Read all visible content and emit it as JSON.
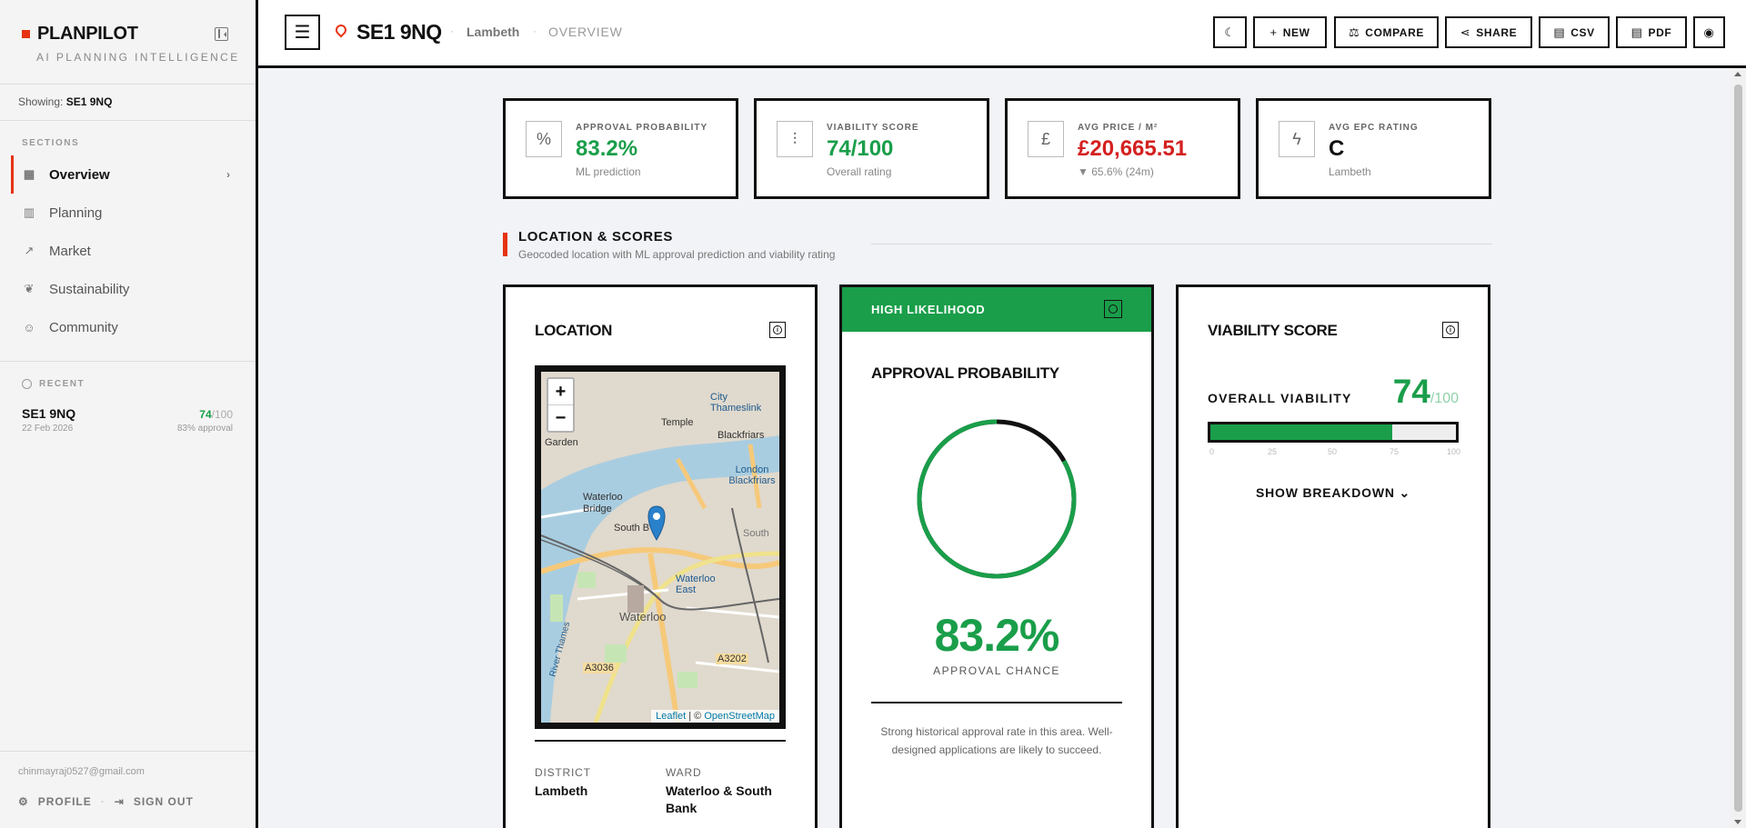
{
  "sidebar": {
    "brand": "PLANPILOT",
    "tagline": "AI PLANNING INTELLIGENCE",
    "showing_label": "Showing:",
    "showing_value": "SE1 9NQ",
    "sections_title": "SECTIONS",
    "items": [
      {
        "label": "Overview",
        "icon": "grid-icon",
        "active": true
      },
      {
        "label": "Planning",
        "icon": "building-icon"
      },
      {
        "label": "Market",
        "icon": "trending-up-icon"
      },
      {
        "label": "Sustainability",
        "icon": "leaf-icon"
      },
      {
        "label": "Community",
        "icon": "users-icon"
      }
    ],
    "recent_title": "RECENT",
    "recent": [
      {
        "postcode": "SE1 9NQ",
        "date": "22 Feb 2026",
        "score": "74",
        "score_max": "/100",
        "approval": "83% approval"
      }
    ],
    "email": "chinmayraj0527@gmail.com",
    "profile_label": "PROFILE",
    "signout_label": "SIGN OUT"
  },
  "topbar": {
    "postcode": "SE1 9NQ",
    "borough": "Lambeth",
    "section": "OVERVIEW",
    "buttons": {
      "new": "NEW",
      "compare": "COMPARE",
      "share": "SHARE",
      "csv": "CSV",
      "pdf": "PDF"
    }
  },
  "stats": [
    {
      "label": "APPROVAL PROBABILITY",
      "value": "83.2%",
      "sub": "ML prediction",
      "icon": "percent-icon",
      "color": "#1a9e4a"
    },
    {
      "label": "VIABILITY SCORE",
      "value": "74/100",
      "sub": "Overall rating",
      "icon": "bar-chart-icon",
      "color": "#1a9e4a"
    },
    {
      "label": "AVG PRICE / M²",
      "value": "£20,665.51",
      "sub": "▼ 65.6% (24m)",
      "icon": "pound-icon",
      "color": "#d42020"
    },
    {
      "label": "AVG EPC RATING",
      "value": "C",
      "sub": "Lambeth",
      "icon": "lightning-icon",
      "color": "#111111"
    }
  ],
  "section": {
    "title": "LOCATION & SCORES",
    "subtitle": "Geocoded location with ML approval prediction and viability rating"
  },
  "location_card": {
    "title": "LOCATION",
    "map_labels": [
      "City Thameslink",
      "Temple",
      "Blackfriars",
      "Garden",
      "London Blackfriars",
      "Waterloo Bridge",
      "South B",
      "South",
      "Waterloo East",
      "Waterloo",
      "A3036",
      "A3202",
      "River Thames"
    ],
    "zoom_in": "+",
    "zoom_out": "−",
    "attribution_leaflet": "Leaflet",
    "attribution_sep": " | © ",
    "attribution_osm": "OpenStreetMap",
    "district_label": "DISTRICT",
    "district_value": "Lambeth",
    "ward_label": "WARD",
    "ward_value": "Waterloo & South Bank"
  },
  "approval_card": {
    "badge": "HIGH LIKELIHOOD",
    "title": "APPROVAL PROBABILITY",
    "probability": 0.832,
    "value": "83.2%",
    "label": "APPROVAL CHANCE",
    "description": "Strong historical approval rate in this area. Well-designed applications are likely to succeed.",
    "accent": "#1a9e4a"
  },
  "viability_card": {
    "title": "VIABILITY SCORE",
    "overall_label": "OVERALL VIABILITY",
    "score": "74",
    "score_max": "/100",
    "fill_fraction": 0.74,
    "ticks": [
      "0",
      "25",
      "50",
      "75",
      "100"
    ],
    "breakdown_label": "SHOW BREAKDOWN"
  }
}
